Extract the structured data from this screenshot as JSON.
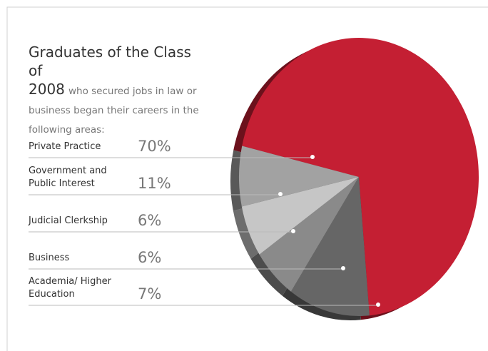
{
  "chart_data": {
    "type": "pie",
    "title": "Graduates of the Class of",
    "title_year": "2008",
    "subtitle": "who secured jobs in law or business began their careers in the following areas:",
    "categories": [
      "Private Practice",
      "Government and Public Interest",
      "Judicial Clerkship",
      "Business",
      "Academia/ Higher Education"
    ],
    "values": [
      70,
      11,
      6,
      6,
      7
    ],
    "value_labels": [
      "70%",
      "11%",
      "6%",
      "6%",
      "7%"
    ],
    "colors": [
      "#c41f33",
      "#666666",
      "#8a8a8a",
      "#c6c6c6",
      "#a2a2a2"
    ]
  }
}
